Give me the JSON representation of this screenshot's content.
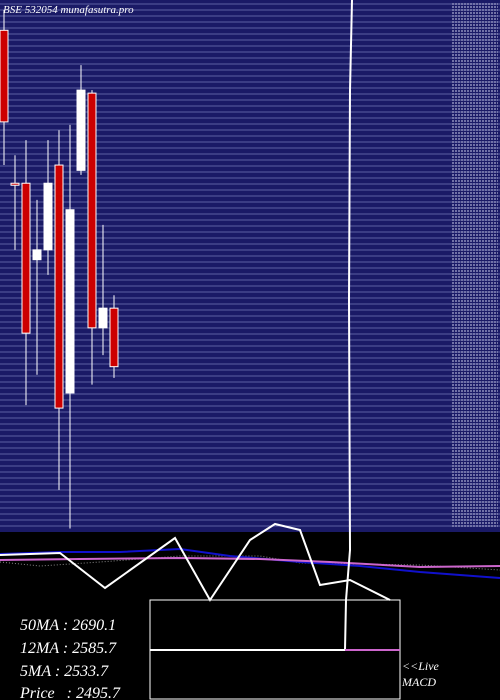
{
  "chart_data": {
    "type": "candlestick",
    "title": "BSE 532054  munafasutra.pro",
    "ylim": [
      2280,
      2980
    ],
    "up_color": "#ffffff",
    "down_color": "#cc0000",
    "series": {
      "open": [
        2940,
        2738,
        2738,
        2637,
        2650,
        2762,
        2461,
        2755,
        2857,
        2547,
        2573
      ],
      "high": [
        2967,
        2775,
        2795,
        2716,
        2795,
        2808,
        2815,
        2894,
        2861,
        2683,
        2590
      ],
      "low": [
        2762,
        2650,
        2445,
        2485,
        2617,
        2333,
        2282,
        2749,
        2472,
        2511,
        2481
      ],
      "close": [
        2819,
        2737,
        2540,
        2650,
        2738,
        2441,
        2703,
        2861,
        2547,
        2573,
        2495.7
      ]
    },
    "indicators": [
      "50MA : 2690.1",
      "12MA : 2585.7",
      "5MA : 2533.7",
      "Price   : 2495.7"
    ],
    "live_label": "<<Live",
    "panel_label": "MACD"
  }
}
